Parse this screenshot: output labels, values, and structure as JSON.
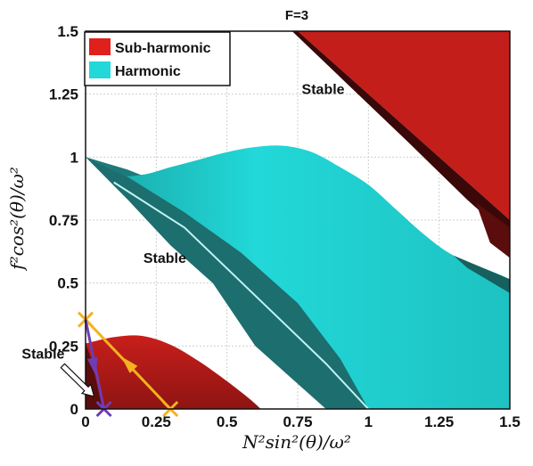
{
  "chart_data": {
    "type": "area",
    "title": "F=3",
    "xlabel": "N²sin²(θ)/ω²",
    "ylabel": "f²cos²(θ)/ω²",
    "xlim": [
      0,
      1.5
    ],
    "ylim": [
      0,
      1.5
    ],
    "x_ticks": [
      "0",
      "0.25",
      "0.5",
      "0.75",
      "1",
      "1.25",
      "1.5"
    ],
    "y_ticks": [
      "0",
      "0.25",
      "0.5",
      "0.75",
      "1",
      "1.25",
      "1.5"
    ],
    "grid": true,
    "legend": {
      "placement": "top-left",
      "entries": [
        {
          "label": "Sub-harmonic",
          "color": "#e0201c"
        },
        {
          "label": "Harmonic",
          "color": "#22d8d8"
        }
      ]
    },
    "series": [
      {
        "name": "Sub-harmonic",
        "color": "#b81a18",
        "regions": [
          {
            "part": "lower",
            "boundary": [
              [
                0.0,
                0.26
              ],
              [
                0.1,
                0.285
              ],
              [
                0.2,
                0.29
              ],
              [
                0.3,
                0.255
              ],
              [
                0.4,
                0.19
              ],
              [
                0.5,
                0.11
              ],
              [
                0.58,
                0.04
              ],
              [
                0.62,
                0.0
              ],
              [
                0.06,
                0.0
              ]
            ]
          },
          {
            "part": "upper",
            "boundary": [
              [
                0.75,
                1.5
              ],
              [
                1.5,
                1.5
              ],
              [
                1.5,
                0.75
              ],
              [
                1.39,
                0.86
              ],
              [
                1.17,
                1.08
              ]
            ]
          }
        ]
      },
      {
        "name": "Harmonic",
        "color": "#22d8d8",
        "regions": [
          {
            "part": "main",
            "upper_boundary": [
              [
                0.0,
                1.0
              ],
              [
                0.1,
                0.93
              ],
              [
                0.2,
                0.93
              ],
              [
                0.3,
                0.96
              ],
              [
                0.4,
                0.99
              ],
              [
                0.5,
                1.02
              ],
              [
                0.6,
                1.04
              ],
              [
                0.7,
                1.045
              ],
              [
                0.8,
                1.02
              ],
              [
                0.9,
                0.96
              ],
              [
                1.0,
                0.89
              ],
              [
                1.1,
                0.79
              ],
              [
                1.2,
                0.69
              ],
              [
                1.3,
                0.61
              ],
              [
                1.45,
                0.54
              ],
              [
                1.5,
                0.515
              ]
            ],
            "lower_boundary": [
              [
                0.0,
                1.0
              ],
              [
                0.1,
                0.91
              ],
              [
                0.2,
                0.82
              ],
              [
                0.3,
                0.72
              ],
              [
                0.4,
                0.61
              ],
              [
                0.5,
                0.5
              ],
              [
                0.6,
                0.39
              ],
              [
                0.7,
                0.28
              ],
              [
                0.8,
                0.18
              ],
              [
                0.9,
                0.09
              ],
              [
                1.0,
                0.0
              ],
              [
                1.5,
                0.0
              ]
            ]
          }
        ]
      }
    ],
    "trajectories": [
      {
        "color": "#f5b21e",
        "points": [
          [
            0.0,
            0.355
          ],
          [
            0.3,
            0.0
          ]
        ],
        "markers": [
          [
            0.0,
            0.355
          ],
          [
            0.3,
            0.0
          ]
        ],
        "arrow_at": [
          0.15,
          0.18
        ]
      },
      {
        "color": "#6e3cb4",
        "points": [
          [
            0.065,
            0.0
          ],
          [
            0.0,
            0.355
          ]
        ],
        "markers": [
          [
            0.065,
            0.0
          ]
        ],
        "arrow_at": [
          0.03,
          0.17
        ]
      }
    ],
    "annotations": [
      {
        "text": "Stable",
        "at": [
          0.84,
          1.25
        ]
      },
      {
        "text": "Stable",
        "at": [
          0.28,
          0.58
        ]
      },
      {
        "text": "Stable",
        "at": [
          -0.15,
          0.2
        ],
        "arrow_to": [
          0.03,
          0.05
        ]
      }
    ]
  }
}
